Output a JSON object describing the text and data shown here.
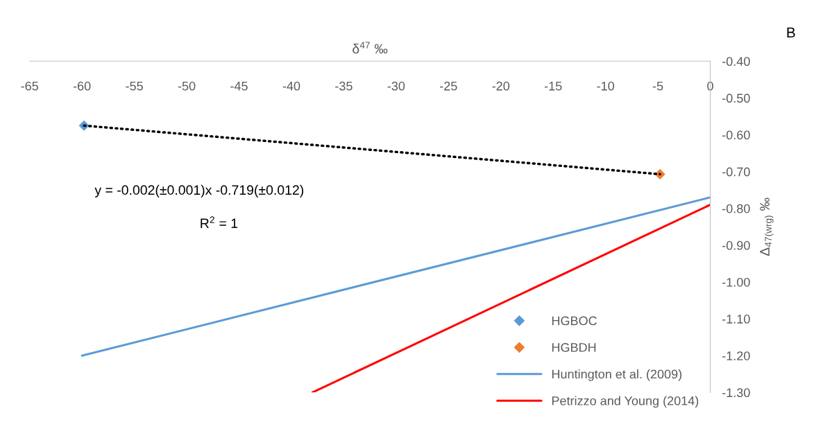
{
  "chart_data": {
    "type": "scatter",
    "xlabel": "δ$^{47}$ ‰",
    "ylabel": "Δ$_{47(wrg)}$ ‰",
    "xlim": [
      -65,
      0
    ],
    "ylim": [
      -1.3,
      -0.4
    ],
    "xticks": [
      -65,
      -60,
      -55,
      -50,
      -45,
      -40,
      -35,
      -30,
      -25,
      -20,
      -15,
      -10,
      -5,
      0
    ],
    "yticks": [
      {
        "value": -0.4,
        "label": "-0.40"
      },
      {
        "value": -0.5,
        "label": "-0.50"
      },
      {
        "value": -0.6,
        "label": "-0.60"
      },
      {
        "value": -0.7,
        "label": "-0.70"
      },
      {
        "value": -0.8,
        "label": "-0.80"
      },
      {
        "value": -0.9,
        "label": "-0.90"
      },
      {
        "value": -1.0,
        "label": "-1.00"
      },
      {
        "value": -1.1,
        "label": "-1.10"
      },
      {
        "value": -1.2,
        "label": "-1.20"
      },
      {
        "value": -1.3,
        "label": "-1.30"
      }
    ],
    "grid": false,
    "legend": "bottom right",
    "series": [
      {
        "name": "HGBOC",
        "marker": "diamond",
        "color": "#5b9bd5",
        "x": [
          -59.8
        ],
        "values": [
          -0.575
        ]
      },
      {
        "name": "HGBDH",
        "marker": "diamond",
        "color": "#ed7d31",
        "x": [
          -4.8
        ],
        "values": [
          -0.707
        ]
      },
      {
        "name": "Huntington et al. (2009)",
        "type": "line",
        "color": "#5b9bd5",
        "line_style": "solid",
        "x": [
          -60,
          0
        ],
        "values": [
          -1.2,
          -0.77
        ]
      },
      {
        "name": "Petrizzo and Young (2014)",
        "type": "line",
        "color": "#ff0000",
        "line_style": "solid",
        "x": [
          -38,
          0
        ],
        "values": [
          -1.3,
          -0.79
        ]
      },
      {
        "type": "line",
        "color": "#000000",
        "line_style": "dotted",
        "x": [
          -59.8,
          -4.8
        ],
        "values": [
          -0.575,
          -0.707
        ]
      }
    ],
    "annotations": [
      "B",
      "y = -0.002(±0.001)x -0.719(±0.012)",
      "R$^{2}$ = 1"
    ]
  }
}
